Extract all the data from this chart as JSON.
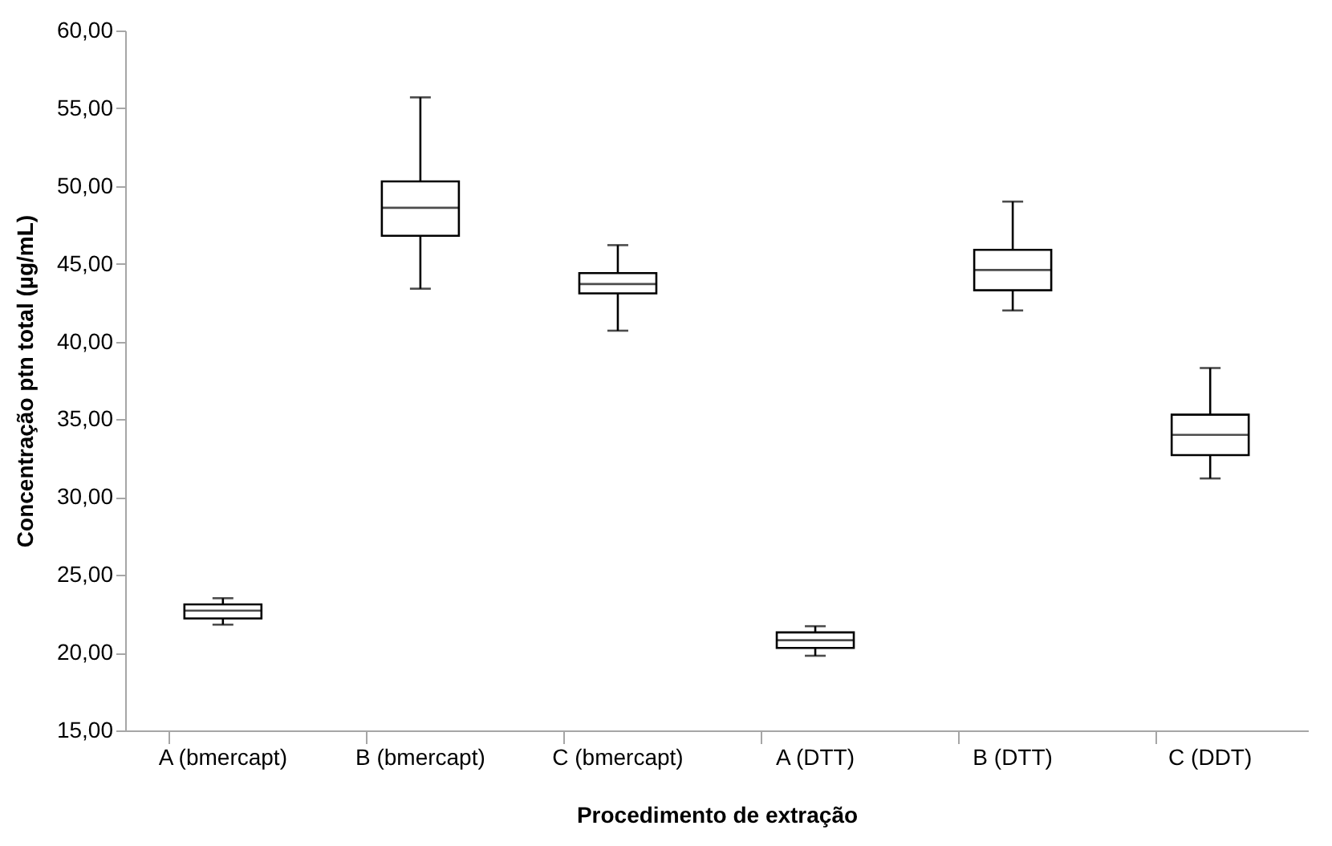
{
  "chart_data": {
    "type": "box",
    "xlabel": "Procedimento de extração",
    "ylabel": "Concentração ptn total (µg/mL)",
    "categories": [
      "A (bmercapt)",
      "B (bmercapt)",
      "C (bmercapt)",
      "A (DTT)",
      "B (DTT)",
      "C (DDT)"
    ],
    "boxes": [
      {
        "low": 21.8,
        "q1": 22.2,
        "median": 22.7,
        "q3": 23.1,
        "high": 23.5
      },
      {
        "low": 43.4,
        "q1": 46.8,
        "median": 48.6,
        "q3": 50.3,
        "high": 55.7
      },
      {
        "low": 40.7,
        "q1": 43.1,
        "median": 43.7,
        "q3": 44.4,
        "high": 46.2
      },
      {
        "low": 19.8,
        "q1": 20.3,
        "median": 20.8,
        "q3": 21.3,
        "high": 21.7
      },
      {
        "low": 42.0,
        "q1": 43.3,
        "median": 44.6,
        "q3": 45.9,
        "high": 49.0
      },
      {
        "low": 31.2,
        "q1": 32.7,
        "median": 34.0,
        "q3": 35.3,
        "high": 38.3
      }
    ],
    "color": "#ffffff",
    "ylim": [
      15,
      60
    ],
    "yticks": [
      {
        "value": 15,
        "label": "15,00"
      },
      {
        "value": 20,
        "label": "20,00"
      },
      {
        "value": 25,
        "label": "25,00"
      },
      {
        "value": 30,
        "label": "30,00"
      },
      {
        "value": 35,
        "label": "35,00"
      },
      {
        "value": 40,
        "label": "40,00"
      },
      {
        "value": 45,
        "label": "45,00"
      },
      {
        "value": 50,
        "label": "50,00"
      },
      {
        "value": 55,
        "label": "55,00"
      },
      {
        "value": 60,
        "label": "60,00"
      }
    ],
    "grid": false
  }
}
